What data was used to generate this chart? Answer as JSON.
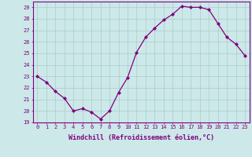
{
  "x": [
    0,
    1,
    2,
    3,
    4,
    5,
    6,
    7,
    8,
    9,
    10,
    11,
    12,
    13,
    14,
    15,
    16,
    17,
    18,
    19,
    20,
    21,
    22,
    23
  ],
  "y": [
    23.0,
    22.5,
    21.7,
    21.1,
    20.0,
    20.2,
    19.9,
    19.3,
    20.0,
    21.6,
    22.9,
    25.1,
    26.4,
    27.2,
    27.9,
    28.4,
    29.1,
    29.0,
    29.0,
    28.8,
    27.6,
    26.4,
    25.8,
    24.8
  ],
  "line_color": "#800080",
  "marker": "D",
  "markersize": 2.0,
  "linewidth": 0.9,
  "bg_color": "#cce8e8",
  "grid_color": "#aacccc",
  "xlabel": "Windchill (Refroidissement éolien,°C)",
  "ylim": [
    19,
    29.5
  ],
  "yticks": [
    19,
    20,
    21,
    22,
    23,
    24,
    25,
    26,
    27,
    28,
    29
  ],
  "xticks": [
    0,
    1,
    2,
    3,
    4,
    5,
    6,
    7,
    8,
    9,
    10,
    11,
    12,
    13,
    14,
    15,
    16,
    17,
    18,
    19,
    20,
    21,
    22,
    23
  ],
  "tick_color": "#800080",
  "axis_color": "#800080",
  "label_color": "#800080",
  "tick_fontsize": 5.0,
  "xlabel_fontsize": 6.0
}
